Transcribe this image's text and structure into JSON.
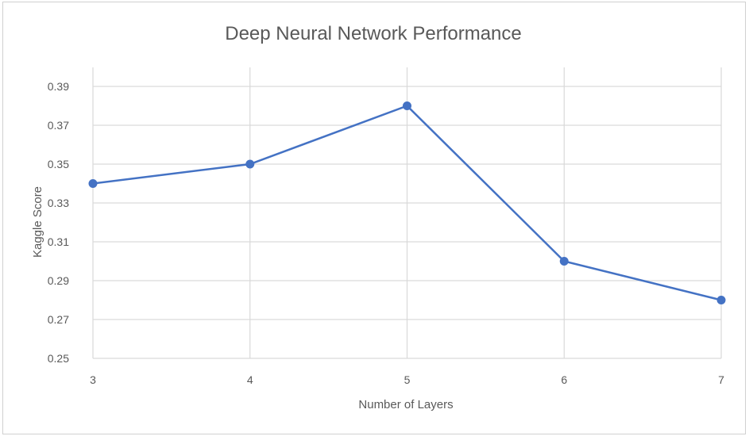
{
  "chart_data": {
    "type": "line",
    "title": "Deep Neural Network Performance",
    "xlabel": "Number of Layers",
    "ylabel": "Kaggle Score",
    "x": [
      3,
      4,
      5,
      6,
      7
    ],
    "x_tick_labels": [
      "3",
      "4",
      "5",
      "6",
      "7"
    ],
    "y_tick_labels": [
      "0.25",
      "0.27",
      "0.29",
      "0.31",
      "0.33",
      "0.35",
      "0.37",
      "0.39"
    ],
    "y_ticks": [
      0.25,
      0.27,
      0.29,
      0.31,
      0.33,
      0.35,
      0.37,
      0.39
    ],
    "ylim": [
      0.25,
      0.39
    ],
    "xlim": [
      3,
      7
    ],
    "grid": true,
    "series": [
      {
        "values": [
          0.34,
          0.35,
          0.38,
          0.3,
          0.28
        ],
        "color": "#4472c4"
      }
    ]
  }
}
